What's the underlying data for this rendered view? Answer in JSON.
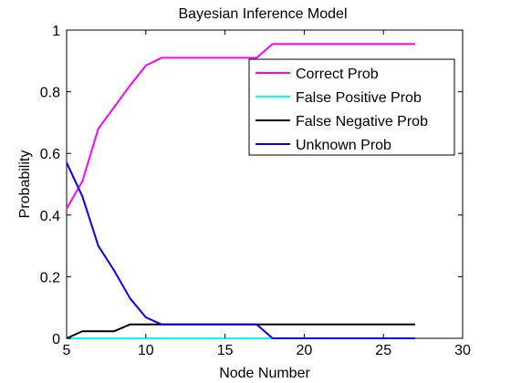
{
  "chart_data": {
    "type": "line",
    "title": "Bayesian Inference Model",
    "xlabel": "Node Number",
    "ylabel": "Probability",
    "xlim": [
      5,
      30
    ],
    "ylim": [
      0,
      1
    ],
    "xticks": [
      5,
      10,
      15,
      20,
      25,
      30
    ],
    "yticks": [
      0,
      0.2,
      0.4,
      0.6,
      0.8,
      1
    ],
    "xtick_labels": [
      "5",
      "10",
      "15",
      "20",
      "25",
      "30"
    ],
    "ytick_labels": [
      "0",
      "0.2",
      "0.4",
      "0.6",
      "0.8",
      "1"
    ],
    "grid": false,
    "legend_position": "top-right",
    "x": [
      5,
      6,
      7,
      8,
      9,
      10,
      11,
      12,
      13,
      14,
      15,
      16,
      17,
      18,
      19,
      20,
      21,
      22,
      23,
      24,
      25,
      26,
      27
    ],
    "series": [
      {
        "name": "Correct Prob",
        "color": "#ff00ff",
        "values": [
          0.42,
          0.51,
          0.68,
          0.75,
          0.82,
          0.885,
          0.91,
          0.91,
          0.91,
          0.91,
          0.91,
          0.91,
          0.91,
          0.955,
          0.955,
          0.955,
          0.955,
          0.955,
          0.955,
          0.955,
          0.955,
          0.955,
          0.955
        ]
      },
      {
        "name": "False Positive Prob",
        "color": "#00ffff",
        "values": [
          0,
          0,
          0,
          0,
          0,
          0,
          0,
          0,
          0,
          0,
          0,
          0,
          0,
          0,
          0,
          0,
          0,
          0,
          0,
          0,
          0,
          0,
          0
        ]
      },
      {
        "name": "False Negative Prob",
        "color": "#000000",
        "values": [
          0,
          0.023,
          0.023,
          0.023,
          0.045,
          0.045,
          0.045,
          0.045,
          0.045,
          0.045,
          0.045,
          0.045,
          0.045,
          0.045,
          0.045,
          0.045,
          0.045,
          0.045,
          0.045,
          0.045,
          0.045,
          0.045,
          0.045
        ]
      },
      {
        "name": "Unknown Prob",
        "color": "#0000ff",
        "values": [
          0.57,
          0.46,
          0.3,
          0.22,
          0.13,
          0.068,
          0.045,
          0.045,
          0.045,
          0.045,
          0.045,
          0.045,
          0.045,
          0,
          0,
          0,
          0,
          0,
          0,
          0,
          0,
          0,
          0
        ]
      }
    ]
  }
}
